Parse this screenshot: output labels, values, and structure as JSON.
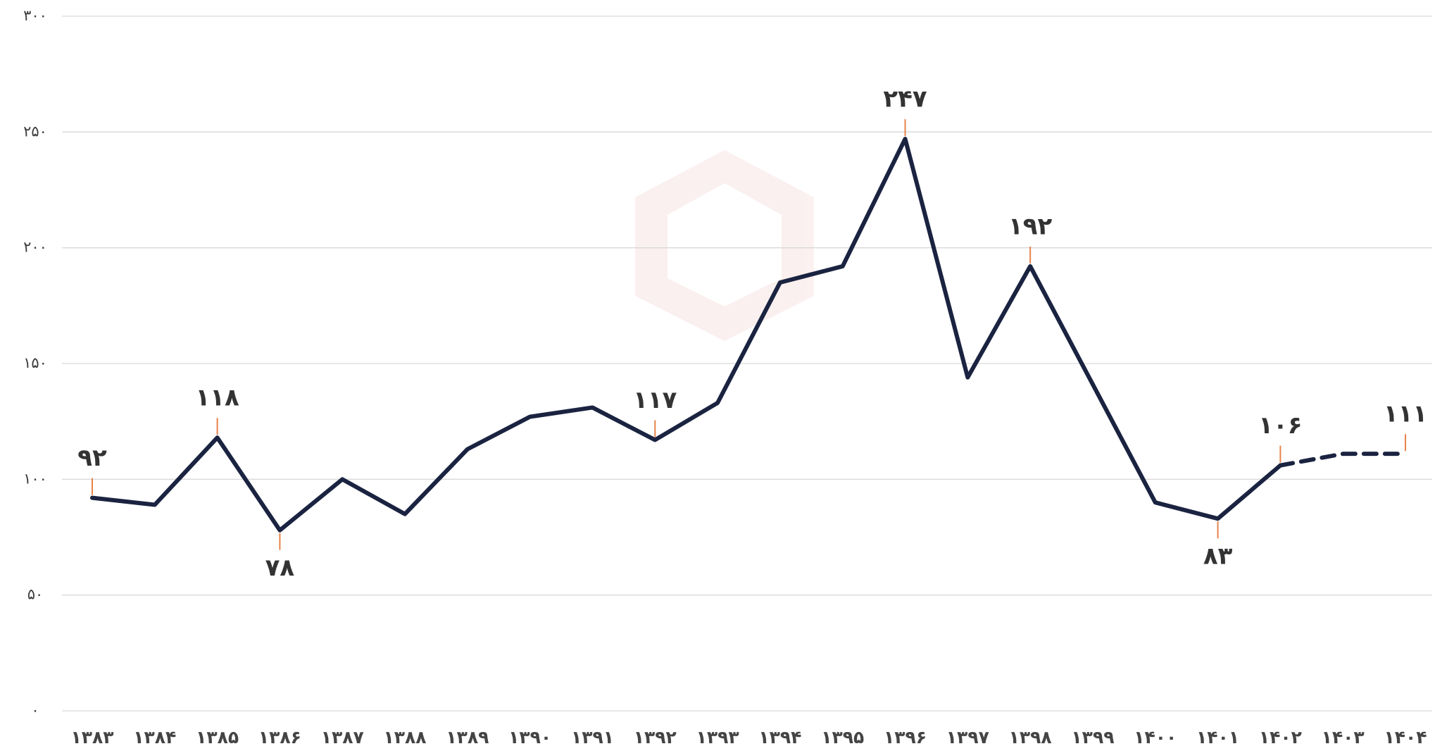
{
  "chart_data": {
    "type": "line",
    "categories": [
      "۱۳۸۳",
      "۱۳۸۴",
      "۱۳۸۵",
      "۱۳۸۶",
      "۱۳۸۷",
      "۱۳۸۸",
      "۱۳۸۹",
      "۱۳۹۰",
      "۱۳۹۱",
      "۱۳۹۲",
      "۱۳۹۳",
      "۱۳۹۴",
      "۱۳۹۵",
      "۱۳۹۶",
      "۱۳۹۷",
      "۱۳۹۸",
      "۱۳۹۹",
      "۱۴۰۰",
      "۱۴۰۱",
      "۱۴۰۲",
      "۱۴۰۳",
      "۱۴۰۴"
    ],
    "series": [
      {
        "color": "#1a2340",
        "dashed": false,
        "values": [
          92,
          89,
          118,
          78,
          100,
          85,
          113,
          127,
          131,
          117,
          133,
          185,
          192,
          247,
          144,
          192,
          141,
          90,
          83,
          106,
          null,
          null
        ],
        "value_labels": [
          "۹۲",
          null,
          "۱۱۸",
          "۷۸",
          null,
          null,
          null,
          null,
          null,
          "۱۱۷",
          null,
          null,
          null,
          "۲۴۷",
          null,
          "۱۹۲",
          null,
          null,
          "۸۳",
          "۱۰۶",
          null,
          null
        ]
      },
      {
        "color": "#1a2340",
        "dashed": true,
        "values": [
          null,
          null,
          null,
          null,
          null,
          null,
          null,
          null,
          null,
          null,
          null,
          null,
          null,
          null,
          null,
          null,
          null,
          null,
          null,
          106,
          111,
          111
        ],
        "value_labels": [
          null,
          null,
          null,
          null,
          null,
          null,
          null,
          null,
          null,
          null,
          null,
          null,
          null,
          null,
          null,
          null,
          null,
          null,
          null,
          null,
          null,
          "۱۱۱"
        ]
      }
    ],
    "ylim": [
      0,
      300
    ],
    "yticks": [
      {
        "value": 0,
        "label": "۰"
      },
      {
        "value": 50,
        "label": "۵۰"
      },
      {
        "value": 100,
        "label": "۱۰۰"
      },
      {
        "value": 150,
        "label": "۱۵۰"
      },
      {
        "value": 200,
        "label": "۲۰۰"
      },
      {
        "value": 250,
        "label": "۲۵۰"
      },
      {
        "value": 300,
        "label": "۳۰۰"
      }
    ],
    "grid": true
  }
}
